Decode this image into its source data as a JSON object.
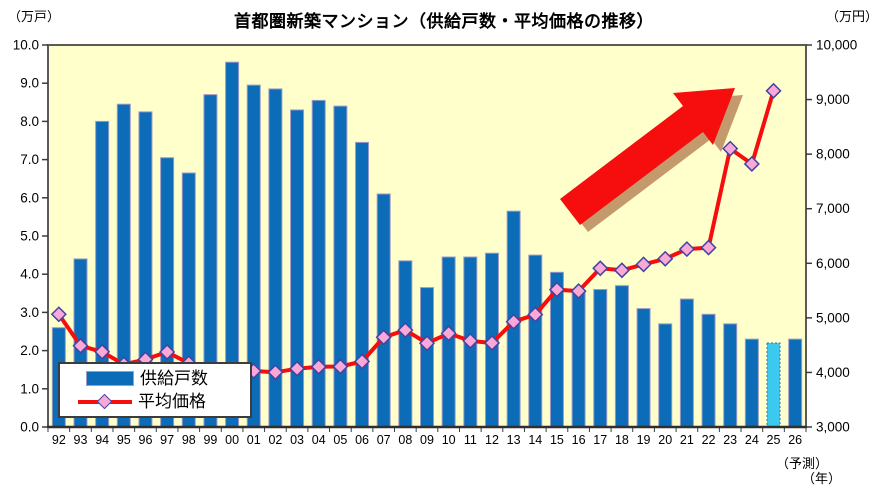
{
  "title": "首都圏新築マンション（供給戸数・平均価格の推移）",
  "left_axis_unit": "（万戸）",
  "right_axis_unit": "（万円）",
  "footnotes": {
    "forecast": "（予測）",
    "year": "（年）"
  },
  "legend": {
    "supply_label": "供給戸数",
    "price_label": "平均価格"
  },
  "chart_data": {
    "type": "bar+line",
    "categories": [
      "92",
      "93",
      "94",
      "95",
      "96",
      "97",
      "98",
      "99",
      "00",
      "01",
      "02",
      "03",
      "04",
      "05",
      "06",
      "07",
      "08",
      "09",
      "10",
      "11",
      "12",
      "13",
      "14",
      "15",
      "16",
      "17",
      "18",
      "19",
      "20",
      "21",
      "22",
      "23",
      "24",
      "25",
      "26"
    ],
    "series": [
      {
        "name": "供給戸数",
        "type": "bar",
        "axis": "left",
        "unit": "万戸",
        "color": "#0d6cb8",
        "bar_border_color": "#9b9bc8",
        "forecast_color": "#3cc9f0",
        "forecast_border_color": "#1e78c8",
        "values": [
          2.6,
          4.4,
          8.0,
          8.45,
          8.25,
          7.05,
          6.65,
          8.7,
          9.55,
          8.95,
          8.85,
          8.3,
          8.55,
          8.4,
          7.45,
          6.1,
          4.35,
          3.65,
          4.45,
          4.45,
          4.55,
          5.65,
          4.5,
          4.05,
          3.55,
          3.6,
          3.7,
          3.1,
          2.7,
          3.35,
          2.95,
          2.7,
          2.3,
          2.2,
          2.3
        ]
      },
      {
        "name": "平均価格",
        "type": "line",
        "axis": "right",
        "unit": "万円",
        "color": "#f60d0d",
        "marker": "diamond",
        "marker_fill": "#f9a8d8",
        "marker_stroke": "#4343a0",
        "values": [
          5066,
          4488,
          4378,
          4148,
          4239,
          4374,
          4168,
          4058,
          4034,
          4026,
          4003,
          4069,
          4104,
          4108,
          4200,
          4644,
          4775,
          4535,
          4716,
          4578,
          4540,
          4929,
          5060,
          5518,
          5490,
          5908,
          5871,
          5980,
          6083,
          6260,
          6288,
          8101,
          7820,
          9160,
          null
        ]
      }
    ],
    "forecast_category": "25",
    "left_axis": {
      "min": 0,
      "max": 10,
      "tick_labels": [
        "0.0",
        "1.0",
        "2.0",
        "3.0",
        "4.0",
        "5.0",
        "6.0",
        "7.0",
        "8.0",
        "9.0",
        "10.0"
      ]
    },
    "right_axis": {
      "min": 3000,
      "max": 10000,
      "tick_labels": [
        "3,000",
        "4,000",
        "5,000",
        "6,000",
        "7,000",
        "8,000",
        "9,000",
        "10,000"
      ]
    },
    "plot_background": "#ffffcc",
    "gridlines": false,
    "legend_position": "inside bottom-left",
    "annotations": [
      {
        "type": "arrow",
        "direction": "up-right",
        "color": "#f60d0d",
        "shadow_color": "#c49a6c"
      }
    ]
  }
}
